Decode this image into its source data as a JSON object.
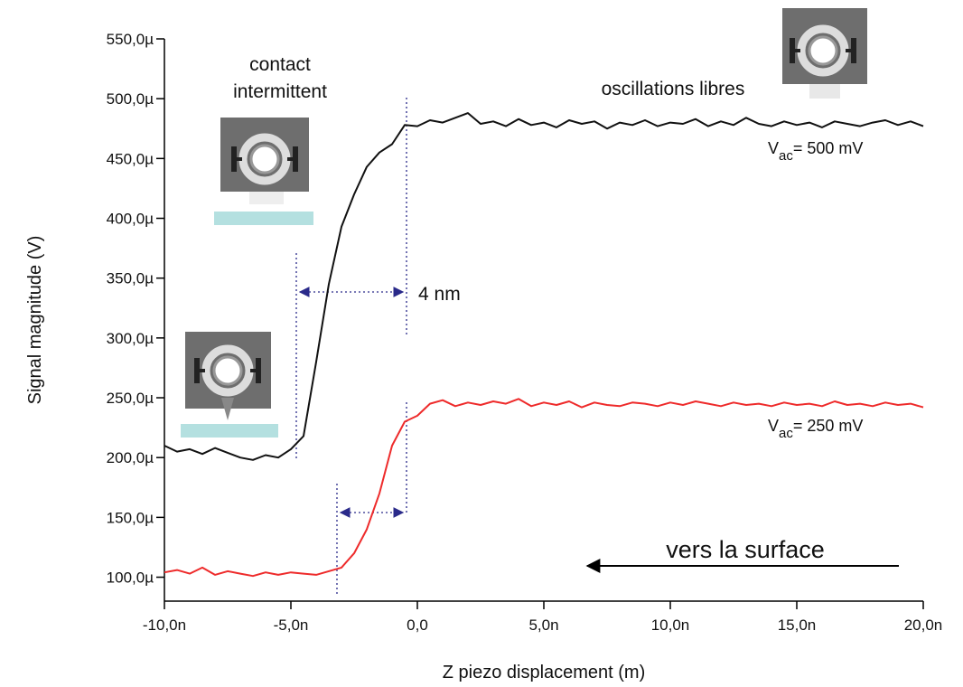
{
  "chart_data": {
    "type": "line",
    "y_label": "Signal magnitude (V)",
    "x_label": "Z piezo displacement (m)",
    "xlim": [
      -1e-08,
      2e-08
    ],
    "ylim": [
      8e-05,
      0.00055
    ],
    "xticks": [
      {
        "value": -1e-08,
        "label": "-10,0n"
      },
      {
        "value": -5e-09,
        "label": "-5,0n"
      },
      {
        "value": 0,
        "label": "0,0"
      },
      {
        "value": 5e-09,
        "label": "5,0n"
      },
      {
        "value": 1e-08,
        "label": "10,0n"
      },
      {
        "value": 1.5e-08,
        "label": "15,0n"
      },
      {
        "value": 2e-08,
        "label": "20,0n"
      }
    ],
    "yticks": [
      {
        "value": 0.0001,
        "label": "100,0µ"
      },
      {
        "value": 0.00015,
        "label": "150,0µ"
      },
      {
        "value": 0.0002,
        "label": "200,0µ"
      },
      {
        "value": 0.00025,
        "label": "250,0µ"
      },
      {
        "value": 0.0003,
        "label": "300,0µ"
      },
      {
        "value": 0.00035,
        "label": "350,0µ"
      },
      {
        "value": 0.0004,
        "label": "400,0µ"
      },
      {
        "value": 0.00045,
        "label": "450,0µ"
      },
      {
        "value": 0.0005,
        "label": "500,0µ"
      },
      {
        "value": 0.00055,
        "label": "550,0µ"
      }
    ],
    "x": [
      -1e-08,
      -9.5e-09,
      -9e-09,
      -8.5e-09,
      -8e-09,
      -7.5e-09,
      -7e-09,
      -6.5e-09,
      -6e-09,
      -5.5e-09,
      -5e-09,
      -4.5e-09,
      -4e-09,
      -3.5e-09,
      -3e-09,
      -2.5e-09,
      -2e-09,
      -1.5e-09,
      -1e-09,
      -5e-10,
      0,
      5e-10,
      1e-09,
      1.5e-09,
      2e-09,
      2.5e-09,
      3e-09,
      3.5e-09,
      4e-09,
      4.5e-09,
      5e-09,
      5.5e-09,
      6e-09,
      6.5e-09,
      7e-09,
      7.5e-09,
      8e-09,
      8.5e-09,
      9e-09,
      9.5e-09,
      1e-08,
      1.05e-08,
      1.1e-08,
      1.15e-08,
      1.2e-08,
      1.25e-08,
      1.3e-08,
      1.35e-08,
      1.4e-08,
      1.45e-08,
      1.5e-08,
      1.55e-08,
      1.6e-08,
      1.65e-08,
      1.7e-08,
      1.75e-08,
      1.8e-08,
      1.85e-08,
      1.9e-08,
      1.95e-08,
      2e-08
    ],
    "series": [
      {
        "color": "#111111",
        "label": {
          "v": "V",
          "sub": "ac",
          "rest": "= 500 mV"
        },
        "values": [
          0.00021,
          0.000205,
          0.000207,
          0.000203,
          0.000208,
          0.000204,
          0.0002,
          0.000198,
          0.000202,
          0.0002,
          0.000207,
          0.000218,
          0.00028,
          0.000345,
          0.000393,
          0.00042,
          0.000443,
          0.000455,
          0.000462,
          0.000478,
          0.000477,
          0.000482,
          0.00048,
          0.000484,
          0.000488,
          0.000479,
          0.000481,
          0.000477,
          0.000483,
          0.000478,
          0.00048,
          0.000476,
          0.000482,
          0.000479,
          0.000481,
          0.000475,
          0.00048,
          0.000478,
          0.000482,
          0.000477,
          0.00048,
          0.000479,
          0.000483,
          0.000477,
          0.000481,
          0.000478,
          0.000484,
          0.000479,
          0.000477,
          0.000481,
          0.000478,
          0.00048,
          0.000476,
          0.000481,
          0.000479,
          0.000477,
          0.00048,
          0.000482,
          0.000478,
          0.000481,
          0.000477
        ]
      },
      {
        "color": "#ee2b2b",
        "label": {
          "v": "V",
          "sub": "ac",
          "rest": "= 250 mV"
        },
        "values": [
          0.000104,
          0.000106,
          0.000103,
          0.000108,
          0.000102,
          0.000105,
          0.000103,
          0.000101,
          0.000104,
          0.000102,
          0.000104,
          0.000103,
          0.000102,
          0.000105,
          0.000108,
          0.00012,
          0.00014,
          0.00017,
          0.00021,
          0.00023,
          0.000235,
          0.000245,
          0.000248,
          0.000243,
          0.000246,
          0.000244,
          0.000247,
          0.000245,
          0.000249,
          0.000243,
          0.000246,
          0.000244,
          0.000247,
          0.000242,
          0.000246,
          0.000244,
          0.000243,
          0.000246,
          0.000245,
          0.000243,
          0.000246,
          0.000244,
          0.000247,
          0.000245,
          0.000243,
          0.000246,
          0.000244,
          0.000245,
          0.000243,
          0.000246,
          0.000244,
          0.000245,
          0.000243,
          0.000247,
          0.000244,
          0.000245,
          0.000243,
          0.000246,
          0.000244,
          0.000245,
          0.000242
        ]
      }
    ],
    "annotations": {
      "contact": [
        "contact",
        "intermittent"
      ],
      "free": "oscillations libres",
      "width": "4 nm",
      "direction": "vers la surface"
    }
  }
}
